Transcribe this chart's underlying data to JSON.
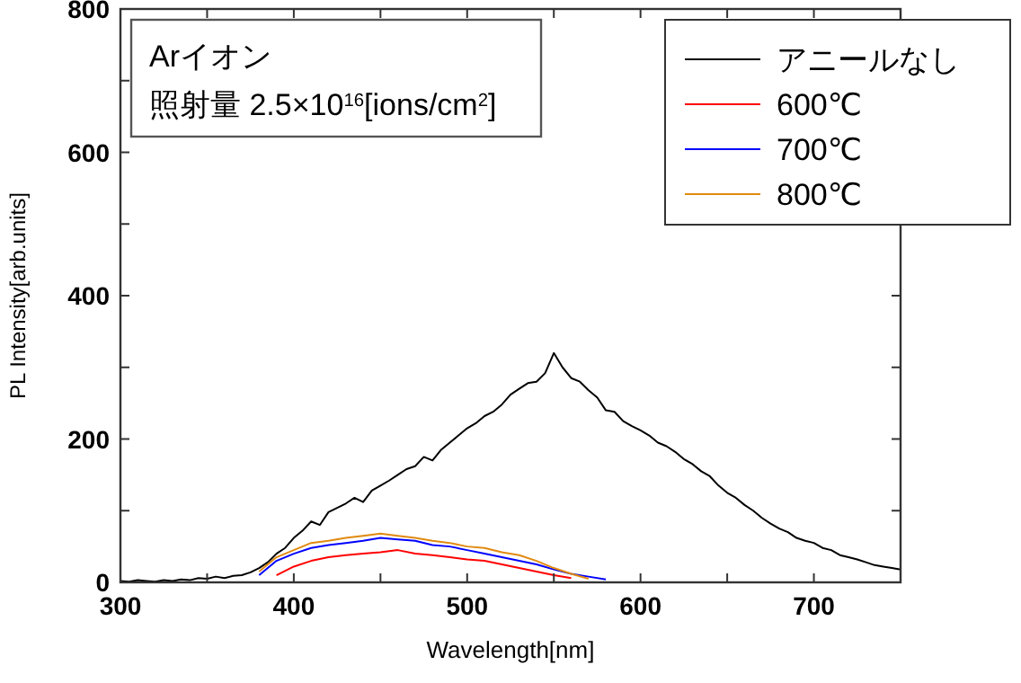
{
  "chart_data": {
    "type": "line",
    "xlabel": "Wavelength[nm]",
    "ylabel": "PL Intensity[arb.units]",
    "xlim": [
      300,
      750
    ],
    "ylim": [
      0,
      800
    ],
    "xticks": [
      300,
      {
        "value": 350,
        "label": null
      },
      400,
      {
        "value": 450,
        "label": null
      },
      500,
      {
        "value": 550,
        "label": null
      },
      600,
      {
        "value": 650,
        "label": null
      },
      700
    ],
    "yticks": [
      0,
      {
        "value": 100,
        "label": null
      },
      200,
      {
        "value": 300,
        "label": null
      },
      400,
      {
        "value": 500,
        "label": null
      },
      600,
      {
        "value": 700,
        "label": null
      },
      800
    ],
    "annotations": [
      "Arイオン",
      "照射量  2.5×10$^{16}$[ions/cm$^{2}$]"
    ],
    "legend": "top right",
    "grid": false,
    "marker": "none",
    "line_style": "solid",
    "series": [
      {
        "name": "アニールなし",
        "color": "#000000",
        "x": [
          300,
          305,
          310,
          315,
          320,
          325,
          330,
          335,
          340,
          345,
          350,
          355,
          360,
          365,
          370,
          375,
          380,
          385,
          390,
          395,
          400,
          405,
          410,
          415,
          420,
          425,
          430,
          435,
          440,
          445,
          450,
          455,
          460,
          465,
          470,
          475,
          480,
          485,
          490,
          495,
          500,
          505,
          510,
          515,
          520,
          525,
          530,
          535,
          540,
          545,
          550,
          555,
          560,
          565,
          570,
          575,
          580,
          585,
          590,
          595,
          600,
          605,
          610,
          615,
          620,
          625,
          630,
          635,
          640,
          645,
          650,
          655,
          660,
          665,
          670,
          675,
          680,
          685,
          690,
          695,
          700,
          705,
          710,
          715,
          720,
          725,
          730,
          735,
          740,
          745,
          750
        ],
        "values": [
          2,
          1,
          3,
          2,
          1,
          3,
          2,
          4,
          3,
          6,
          5,
          8,
          6,
          9,
          10,
          14,
          20,
          28,
          40,
          48,
          62,
          72,
          85,
          80,
          98,
          104,
          110,
          118,
          112,
          128,
          135,
          142,
          150,
          158,
          162,
          175,
          170,
          185,
          195,
          205,
          215,
          222,
          232,
          238,
          248,
          262,
          270,
          278,
          280,
          292,
          320,
          300,
          285,
          280,
          268,
          258,
          240,
          238,
          225,
          218,
          212,
          205,
          195,
          190,
          182,
          172,
          165,
          155,
          148,
          135,
          125,
          118,
          108,
          100,
          90,
          82,
          75,
          70,
          62,
          58,
          55,
          48,
          45,
          38,
          35,
          32,
          28,
          24,
          22,
          20,
          18
        ]
      },
      {
        "name": "600℃",
        "color": "#ff0000",
        "x": [
          390,
          400,
          410,
          420,
          430,
          440,
          450,
          460,
          470,
          480,
          490,
          500,
          510,
          520,
          530,
          540,
          550,
          560
        ],
        "values": [
          10,
          22,
          30,
          35,
          38,
          40,
          42,
          45,
          40,
          38,
          35,
          32,
          30,
          25,
          20,
          15,
          10,
          6
        ]
      },
      {
        "name": "700℃",
        "color": "#0000ff",
        "x": [
          380,
          390,
          400,
          410,
          420,
          430,
          440,
          450,
          460,
          470,
          480,
          490,
          500,
          510,
          520,
          530,
          540,
          550,
          560,
          570,
          580
        ],
        "values": [
          10,
          30,
          40,
          48,
          52,
          55,
          58,
          62,
          60,
          58,
          52,
          50,
          45,
          40,
          35,
          30,
          25,
          18,
          12,
          8,
          4
        ]
      },
      {
        "name": "800℃",
        "color": "#e08a10",
        "x": [
          380,
          390,
          400,
          410,
          420,
          430,
          440,
          450,
          460,
          470,
          480,
          490,
          500,
          510,
          520,
          530,
          540,
          550,
          560,
          570
        ],
        "values": [
          15,
          35,
          45,
          55,
          58,
          62,
          65,
          68,
          65,
          62,
          58,
          55,
          50,
          48,
          42,
          38,
          30,
          20,
          12,
          5
        ]
      }
    ]
  }
}
